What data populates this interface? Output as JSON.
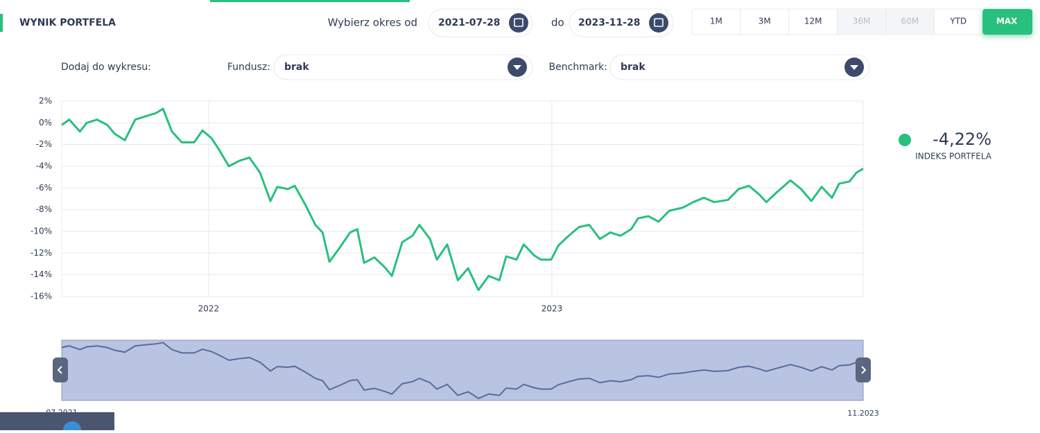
{
  "header": {
    "title": "WYNIK PORTFELA",
    "period_label": "Wybierz okres od",
    "date_from": "2021-07-28",
    "to_label": "do",
    "date_to": "2023-11-28",
    "ranges": [
      {
        "label": "1M",
        "state": "normal"
      },
      {
        "label": "3M",
        "state": "normal"
      },
      {
        "label": "12M",
        "state": "normal"
      },
      {
        "label": "36M",
        "state": "disabled"
      },
      {
        "label": "60M",
        "state": "disabled"
      },
      {
        "label": "YTD",
        "state": "normal"
      },
      {
        "label": "MAX",
        "state": "active"
      }
    ]
  },
  "filters": {
    "label": "Dodaj do wykresu:",
    "fund_label": "Fundusz:",
    "fund_value": "brak",
    "benchmark_label": "Benchmark:",
    "benchmark_value": "brak"
  },
  "chart_data": {
    "type": "line",
    "x": [
      2021.572,
      2021.594,
      2021.625,
      2021.645,
      2021.675,
      2021.705,
      2021.726,
      2021.756,
      2021.786,
      2021.816,
      2021.847,
      2021.867,
      2021.893,
      2021.922,
      2021.958,
      2021.982,
      2022.008,
      2022.029,
      2022.059,
      2022.089,
      2022.119,
      2022.15,
      2022.18,
      2022.2,
      2022.231,
      2022.251,
      2022.281,
      2022.311,
      2022.332,
      2022.352,
      2022.382,
      2022.412,
      2022.433,
      2022.453,
      2022.483,
      2022.513,
      2022.534,
      2022.564,
      2022.594,
      2022.614,
      2022.645,
      2022.665,
      2022.695,
      2022.726,
      2022.756,
      2022.786,
      2022.816,
      2022.847,
      2022.867,
      2022.897,
      2022.918,
      2022.948,
      2022.968,
      2022.998,
      2023.019,
      2023.049,
      2023.079,
      2023.109,
      2023.14,
      2023.17,
      2023.2,
      2023.231,
      2023.251,
      2023.281,
      2023.311,
      2023.342,
      2023.382,
      2023.412,
      2023.443,
      2023.473,
      2023.513,
      2023.544,
      2023.574,
      2023.604,
      2023.625,
      2023.655,
      2023.695,
      2023.726,
      2023.756,
      2023.786,
      2023.816,
      2023.837,
      2023.867,
      2023.887,
      2023.907
    ],
    "series": [
      {
        "name": "INDEKS PORTFELA",
        "color": "#27c07d",
        "values": [
          -0.2,
          0.3,
          -0.8,
          0,
          0.3,
          -0.2,
          -1.0,
          -1.6,
          0.3,
          0.6,
          0.9,
          1.3,
          -0.8,
          -1.8,
          -1.8,
          -0.7,
          -1.4,
          -2.4,
          -4.0,
          -3.5,
          -3.2,
          -4.6,
          -7.2,
          -5.9,
          -6.1,
          -5.8,
          -7.5,
          -9.4,
          -10.1,
          -12.8,
          -11.5,
          -10.1,
          -9.8,
          -12.9,
          -12.4,
          -13.3,
          -14.1,
          -11.0,
          -10.4,
          -9.4,
          -10.7,
          -12.6,
          -11.2,
          -14.5,
          -13.4,
          -15.4,
          -14.1,
          -14.5,
          -12.3,
          -12.6,
          -11.2,
          -12.2,
          -12.6,
          -12.6,
          -11.3,
          -10.4,
          -9.6,
          -9.4,
          -10.7,
          -10.1,
          -10.4,
          -9.8,
          -8.8,
          -8.6,
          -9.1,
          -8.1,
          -7.8,
          -7.3,
          -6.9,
          -7.3,
          -7.1,
          -6.1,
          -5.8,
          -6.6,
          -7.3,
          -6.4,
          -5.3,
          -6.1,
          -7.2,
          -5.9,
          -6.9,
          -5.6,
          -5.4,
          -4.6,
          -4.22
        ]
      }
    ],
    "xlim": [
      2021.572,
      2023.907
    ],
    "xticks": [
      2022,
      2023
    ],
    "ylim": [
      -16,
      2
    ],
    "yticks": [
      {
        "value": -16,
        "label": "-16%"
      },
      {
        "value": -14,
        "label": "-14%"
      },
      {
        "value": -12,
        "label": "-12%"
      },
      {
        "value": -10,
        "label": "-10%"
      },
      {
        "value": -8,
        "label": "-8%"
      },
      {
        "value": -6,
        "label": "-6%"
      },
      {
        "value": -4,
        "label": "-4%"
      },
      {
        "value": -2,
        "label": "-2%"
      },
      {
        "value": 0,
        "label": "0%"
      },
      {
        "value": 2,
        "label": "2%"
      }
    ],
    "grid": true,
    "last_value": {
      "value": -4.22,
      "label": "-4,22%"
    },
    "navigator": {
      "start_label": "07.2021",
      "end_label": "11.2023"
    }
  }
}
